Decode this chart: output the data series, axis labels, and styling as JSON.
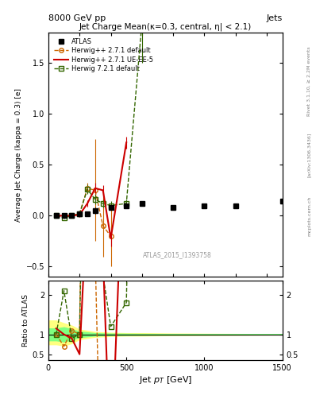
{
  "title": "Jet Charge Mean(κ=0.3, central, η| < 2.1)",
  "top_label_left": "8000 GeV pp",
  "top_label_right": "Jets",
  "ylabel_main": "Average Jet Charge (kappa = 0.3) [e]",
  "ylabel_ratio": "Ratio to ATLAS",
  "xlabel": "Jet $p_T$ [GeV]",
  "watermark": "ATLAS_2015_I1393758",
  "rivet_label": "Rivet 3.1.10, ≥ 2.2M events",
  "arxiv_label": "[arXiv:1306.3436]",
  "mcplots_label": "mcplots.cern.ch",
  "atlas_x": [
    50,
    100,
    150,
    200,
    250,
    300,
    400,
    500,
    600,
    800,
    1000,
    1200,
    1500
  ],
  "atlas_y": [
    0.0,
    0.0,
    0.0,
    0.02,
    0.02,
    0.05,
    0.08,
    0.1,
    0.12,
    0.08,
    0.1,
    0.1,
    0.14
  ],
  "atlas_yerr": [
    0.01,
    0.01,
    0.01,
    0.01,
    0.02,
    0.03,
    0.02,
    0.02,
    0.02,
    0.02,
    0.02,
    0.02,
    0.02
  ],
  "hw271_x": [
    50,
    100,
    150,
    200,
    250,
    300,
    350,
    400
  ],
  "hw271_y": [
    0.0,
    0.0,
    0.0,
    0.02,
    0.27,
    0.25,
    -0.1,
    -0.2
  ],
  "hw271_yerr": [
    0.01,
    0.01,
    0.01,
    0.02,
    0.05,
    0.5,
    0.3,
    0.3
  ],
  "hwUE_x": [
    50,
    100,
    150,
    200,
    250,
    300,
    350,
    400,
    500
  ],
  "hwUE_y": [
    0.0,
    0.0,
    0.0,
    0.01,
    0.12,
    0.27,
    0.25,
    -0.22,
    0.72
  ],
  "hwUE_yerr": [
    0.01,
    0.01,
    0.01,
    0.02,
    0.03,
    0.05,
    0.05,
    0.08,
    0.06
  ],
  "hw721_x": [
    50,
    100,
    150,
    200,
    250,
    300,
    350,
    400,
    500,
    600
  ],
  "hw721_y": [
    0.0,
    -0.02,
    0.0,
    0.02,
    0.26,
    0.16,
    0.12,
    0.1,
    0.12,
    1.9
  ],
  "hw721_yerr": [
    0.01,
    0.01,
    0.01,
    0.02,
    0.05,
    0.05,
    0.04,
    0.04,
    0.04,
    0.4
  ],
  "ratio_hw271_x": [
    50,
    100,
    150,
    200,
    250,
    300,
    350,
    400
  ],
  "ratio_hw271_y": [
    1.0,
    0.7,
    1.1,
    1.0,
    15.0,
    3.0,
    -5.0,
    -3.0
  ],
  "ratio_hwUE_x": [
    50,
    100,
    150,
    200,
    250,
    300,
    350,
    400,
    500
  ],
  "ratio_hwUE_y": [
    1.15,
    1.0,
    0.9,
    0.5,
    4.5,
    5.0,
    3.0,
    -2.5,
    7.5
  ],
  "ratio_hw721_x": [
    50,
    100,
    150,
    200,
    250,
    300,
    350,
    400,
    500,
    600
  ],
  "ratio_hw721_y": [
    1.0,
    2.1,
    0.9,
    1.0,
    12.0,
    3.0,
    2.5,
    1.2,
    1.8,
    20.0
  ],
  "band_x": [
    0,
    50,
    100,
    150,
    200,
    300,
    400,
    500,
    600,
    700,
    800,
    900,
    1000,
    1100,
    1200,
    1300,
    1400,
    1500
  ],
  "band_yellow_lo": [
    0.75,
    0.75,
    0.72,
    0.78,
    0.88,
    0.94,
    0.96,
    0.97,
    0.97,
    0.975,
    0.98,
    0.982,
    0.985,
    0.987,
    0.989,
    0.991,
    0.993,
    0.995
  ],
  "band_yellow_hi": [
    1.35,
    1.35,
    1.28,
    1.22,
    1.12,
    1.06,
    1.04,
    1.03,
    1.03,
    1.025,
    1.02,
    1.018,
    1.015,
    1.013,
    1.011,
    1.009,
    1.007,
    1.005
  ],
  "band_green_lo": [
    0.85,
    0.85,
    0.82,
    0.87,
    0.93,
    0.97,
    0.98,
    0.985,
    0.988,
    0.99,
    0.991,
    0.992,
    0.993,
    0.994,
    0.995,
    0.996,
    0.997,
    0.998
  ],
  "band_green_hi": [
    1.15,
    1.15,
    1.18,
    1.13,
    1.07,
    1.03,
    1.02,
    1.015,
    1.012,
    1.01,
    1.009,
    1.008,
    1.007,
    1.006,
    1.005,
    1.004,
    1.003,
    1.002
  ],
  "color_atlas": "#000000",
  "color_hw271": "#cc6600",
  "color_hwUE": "#cc0000",
  "color_hw721": "#336600",
  "color_band_yellow": "#ffff80",
  "color_band_green": "#80ff80",
  "bg_color": "#ffffff",
  "main_ylim": [
    -0.6,
    1.8
  ],
  "ratio_ylim": [
    0.35,
    2.35
  ],
  "xlim": [
    0,
    1500
  ]
}
